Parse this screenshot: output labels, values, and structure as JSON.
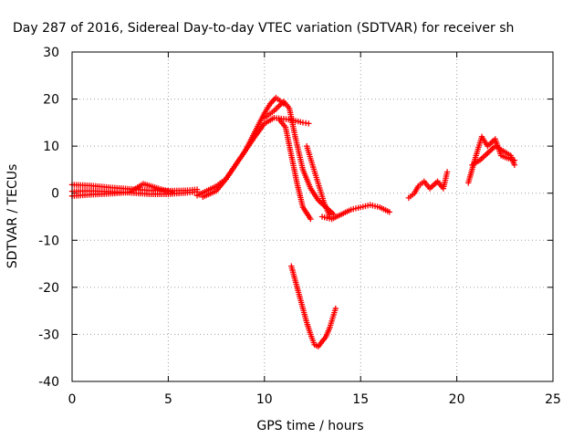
{
  "chart_data": {
    "type": "scatter",
    "title": "Day 287 of 2016, Sidereal Day-to-day VTEC variation (SDTVAR) for receiver sh",
    "xlabel": "GPS time / hours",
    "ylabel": "SDTVAR / TECUs",
    "xlim": [
      0,
      25
    ],
    "ylim": [
      -40,
      30
    ],
    "xticks": [
      0,
      5,
      10,
      15,
      20,
      25
    ],
    "yticks": [
      -40,
      -30,
      -20,
      -10,
      0,
      10,
      20,
      30
    ],
    "grid": true,
    "marker": "plus",
    "color": "#ff0000",
    "series": [
      {
        "x": [
          0,
          1,
          2,
          3,
          4,
          5,
          6,
          6.5
        ],
        "y": [
          1.8,
          1.6,
          1.2,
          0.9,
          0.6,
          0.5,
          0.6,
          0.8
        ]
      },
      {
        "x": [
          0,
          1,
          2,
          3,
          4,
          5,
          6,
          6.5
        ],
        "y": [
          0.4,
          0.5,
          0.3,
          0.1,
          -0.2,
          -0.2,
          0.1,
          0.3
        ]
      },
      {
        "x": [
          0,
          1,
          2,
          3,
          3.7,
          4.5,
          5.2
        ],
        "y": [
          -0.6,
          -0.3,
          -0.1,
          0.2,
          2.0,
          1.0,
          0.2
        ]
      },
      {
        "x": [
          6.5,
          7.0,
          7.5,
          8.0,
          8.5,
          9.0,
          9.5,
          10.0,
          10.3,
          10.6,
          11.0
        ],
        "y": [
          -0.5,
          0.5,
          1.5,
          3.0,
          6.0,
          9.0,
          13.0,
          17.0,
          19.0,
          20.3,
          19.0
        ]
      },
      {
        "x": [
          6.8,
          7.5,
          8.0,
          8.5,
          9.0,
          9.5,
          10.0,
          10.5,
          11.0,
          11.5,
          12.0,
          12.3
        ],
        "y": [
          -0.8,
          0.5,
          3.0,
          6.0,
          9.0,
          12.0,
          14.8,
          16.0,
          15.8,
          15.5,
          15.0,
          14.8
        ]
      },
      {
        "x": [
          10.0,
          10.5,
          11.0,
          11.3,
          11.6,
          12.0,
          12.4,
          12.8,
          13.2,
          13.6
        ],
        "y": [
          16.0,
          17.5,
          19.5,
          18.0,
          12.0,
          5.0,
          1.0,
          -1.5,
          -3.0,
          -4.5
        ]
      },
      {
        "x": [
          10.8,
          11.1,
          11.4,
          11.7,
          12.0,
          12.4
        ],
        "y": [
          15.5,
          14.0,
          8.0,
          2.0,
          -3.0,
          -5.5
        ]
      },
      {
        "x": [
          12.2,
          12.5,
          12.8,
          13.1,
          13.4
        ],
        "y": [
          10.0,
          6.0,
          2.0,
          -2.0,
          -5.0
        ]
      },
      {
        "x": [
          13.0,
          13.5,
          14.0,
          14.5,
          15.0,
          15.5,
          16.0,
          16.5
        ],
        "y": [
          -5.0,
          -5.5,
          -4.5,
          -3.5,
          -3.0,
          -2.5,
          -3.0,
          -4.0
        ]
      },
      {
        "x": [
          11.4,
          11.6,
          11.8,
          12.0,
          12.2,
          12.4,
          12.6,
          12.8,
          13.0,
          13.2,
          13.4,
          13.7
        ],
        "y": [
          -15.5,
          -18.5,
          -21.5,
          -24.5,
          -27.5,
          -30.0,
          -32.2,
          -32.6,
          -31.5,
          -30.5,
          -28.5,
          -24.5
        ]
      },
      {
        "x": [
          17.5,
          17.8,
          18.0,
          18.3,
          18.6,
          19.0,
          19.3,
          19.5
        ],
        "y": [
          -1.0,
          0.0,
          1.5,
          2.5,
          1.0,
          2.5,
          1.0,
          4.5
        ]
      },
      {
        "x": [
          20.6,
          21.0,
          21.3,
          21.6,
          22.0,
          22.3,
          22.6,
          23.0
        ],
        "y": [
          2.2,
          8.0,
          12.0,
          10.0,
          11.5,
          8.0,
          7.5,
          7.0
        ]
      },
      {
        "x": [
          20.8,
          21.2,
          21.6,
          22.0,
          22.4,
          22.8,
          23.0
        ],
        "y": [
          6.0,
          7.0,
          8.5,
          10.0,
          9.0,
          8.0,
          6.0
        ]
      }
    ]
  }
}
